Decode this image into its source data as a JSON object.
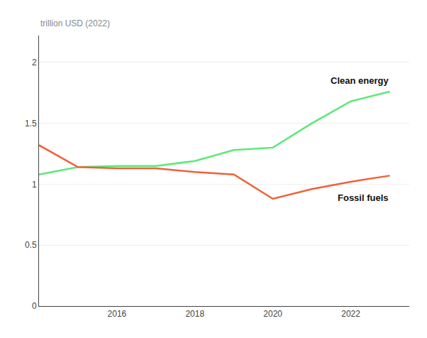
{
  "chart_data": {
    "type": "line",
    "y_label": "trillion USD (2022)",
    "x": [
      2014,
      2015,
      2016,
      2017,
      2018,
      2019,
      2020,
      2021,
      2022,
      2023
    ],
    "series": [
      {
        "name": "Clean energy",
        "color": "#5de87a",
        "values": [
          1.08,
          1.14,
          1.15,
          1.15,
          1.19,
          1.28,
          1.3,
          1.5,
          1.68,
          1.76
        ]
      },
      {
        "name": "Fossil fuels",
        "color": "#f0613a",
        "values": [
          1.32,
          1.14,
          1.13,
          1.13,
          1.1,
          1.08,
          0.88,
          0.96,
          1.02,
          1.07
        ]
      }
    ],
    "xlim": [
      2014.0,
      2023.5
    ],
    "xticks": [
      2016,
      2018,
      2020,
      2022
    ],
    "ylim": [
      0,
      2.22
    ],
    "yticks": [
      0,
      0.5,
      1,
      1.5,
      2
    ],
    "grid": true
  }
}
